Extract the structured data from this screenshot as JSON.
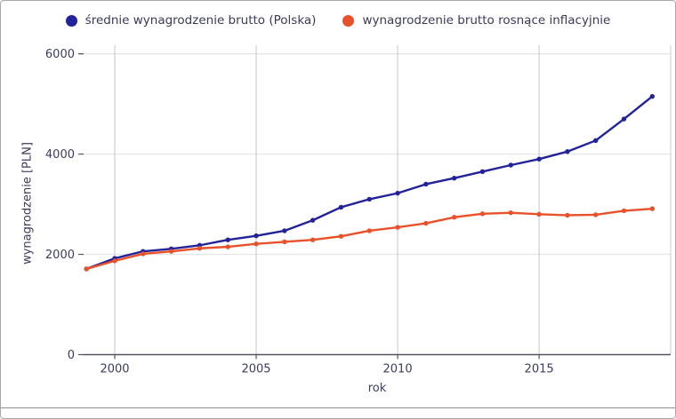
{
  "chart_data": {
    "type": "line",
    "title": "",
    "xlabel": "rok",
    "ylabel": "wynagrodzenie [PLN]",
    "x": [
      1999,
      2000,
      2001,
      2002,
      2003,
      2004,
      2005,
      2006,
      2007,
      2008,
      2009,
      2010,
      2011,
      2012,
      2013,
      2014,
      2015,
      2016,
      2017,
      2018,
      2019
    ],
    "series": [
      {
        "name": "średnie wynagrodzenie brutto (Polska)",
        "color": "#22229b",
        "values": [
          1710,
          1920,
          2060,
          2110,
          2180,
          2290,
          2370,
          2470,
          2680,
          2940,
          3100,
          3220,
          3400,
          3520,
          3650,
          3780,
          3900,
          4050,
          4270,
          4700,
          5150
        ]
      },
      {
        "name": "wynagrodzenie brutto rosnące inflacyjnie",
        "color": "#e8512a",
        "values": [
          1710,
          1870,
          2010,
          2060,
          2120,
          2150,
          2210,
          2250,
          2290,
          2360,
          2470,
          2540,
          2620,
          2740,
          2810,
          2830,
          2800,
          2780,
          2790,
          2870,
          2910
        ]
      }
    ],
    "xticks": [
      2000,
      2005,
      2010,
      2015
    ],
    "yticks": [
      0,
      2000,
      4000,
      6000
    ],
    "ylim": [
      0,
      6170
    ],
    "xlim": [
      1998.9,
      2019.65
    ],
    "grid": true,
    "legend_position": "top"
  },
  "colors": {
    "tick_text": "#3c3c5e",
    "axis_line": "#55555f",
    "grid_vertical": "#c6c6c6",
    "grid_horizontal": "#e5e5e5",
    "plot_right_border": "#cccccc"
  }
}
